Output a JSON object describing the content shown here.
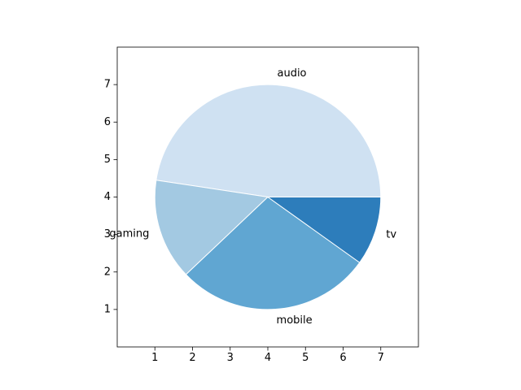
{
  "chart_data": {
    "type": "pie",
    "categories": [
      "audio",
      "gaming",
      "mobile",
      "tv"
    ],
    "values": [
      47.6,
      14.5,
      28.0,
      9.9
    ],
    "colors": [
      "#cfe1f2",
      "#a3c9e2",
      "#60a6d2",
      "#2d7dbb"
    ],
    "edgecolor": "#ffffff",
    "start_angle_deg": 0,
    "direction": "counterclockwise",
    "center": [
      4,
      4
    ],
    "radius": 3,
    "xlim": [
      0,
      8
    ],
    "ylim": [
      0,
      8
    ],
    "xticks": [
      1,
      2,
      3,
      4,
      5,
      6,
      7
    ],
    "yticks": [
      1,
      2,
      3,
      4,
      5,
      6,
      7
    ],
    "title": "",
    "xlabel": "",
    "ylabel": "",
    "grid": false,
    "legend": "none"
  }
}
